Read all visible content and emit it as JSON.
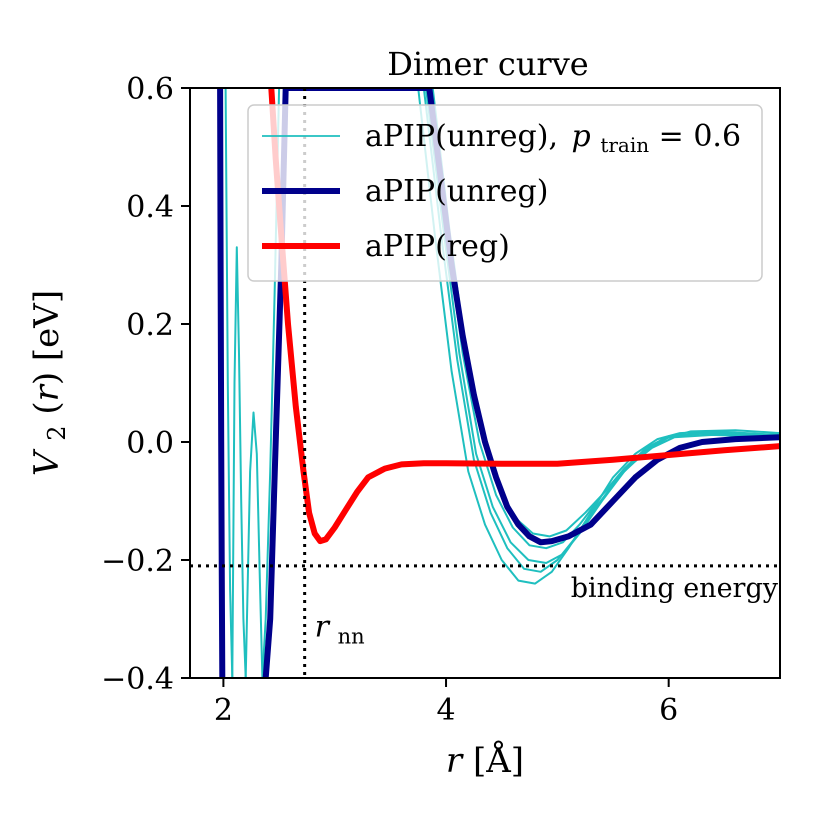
{
  "chart_data": {
    "type": "line",
    "title": "Dimer curve",
    "xlabel": "r [Å]",
    "ylabel": "V2(r) [eV]",
    "xlim": [
      1.7,
      7.0
    ],
    "ylim": [
      -0.4,
      0.6
    ],
    "x_ticks": [
      2,
      4,
      6
    ],
    "y_ticks": [
      -0.4,
      -0.2,
      0.0,
      0.2,
      0.4,
      0.6
    ],
    "x_tick_labels": [
      "2",
      "4",
      "6"
    ],
    "y_tick_labels": [
      "−0.4",
      "−0.2",
      "0.0",
      "0.2",
      "0.4",
      "0.6"
    ],
    "grid": false,
    "legend_position": "top-right",
    "legend": [
      {
        "label": "aPIP(unreg), p_train = 0.6",
        "color": "#1fbfbf"
      },
      {
        "label": "aPIP(unreg)",
        "color": "#00008b"
      },
      {
        "label": "aPIP(reg)",
        "color": "#ff0000"
      }
    ],
    "legend_text": {
      "main": "aPIP(unreg),",
      "p_symbol": "p",
      "p_subscript": "train",
      "p_value": " = 0.6"
    },
    "reference_lines": {
      "r_nn": 2.73,
      "binding_energy": -0.21,
      "r_nn_label": "r",
      "r_nn_subscript": "nn",
      "binding_energy_label": "binding energy"
    },
    "series": [
      {
        "name": "aPIP(unreg)",
        "color": "#00008b",
        "points": [
          [
            2.38,
            -0.4
          ],
          [
            2.42,
            -0.3
          ],
          [
            2.47,
            0.0
          ],
          [
            2.52,
            0.3
          ],
          [
            2.56,
            0.6
          ],
          [
            3.85,
            0.6
          ],
          [
            3.95,
            0.45
          ],
          [
            4.05,
            0.3
          ],
          [
            4.15,
            0.18
          ],
          [
            4.25,
            0.08
          ],
          [
            4.35,
            0.0
          ],
          [
            4.45,
            -0.06
          ],
          [
            4.55,
            -0.11
          ],
          [
            4.65,
            -0.14
          ],
          [
            4.75,
            -0.16
          ],
          [
            4.85,
            -0.17
          ],
          [
            4.95,
            -0.168
          ],
          [
            5.1,
            -0.16
          ],
          [
            5.3,
            -0.14
          ],
          [
            5.5,
            -0.1
          ],
          [
            5.7,
            -0.06
          ],
          [
            5.9,
            -0.03
          ],
          [
            6.1,
            -0.01
          ],
          [
            6.3,
            0.0
          ],
          [
            6.6,
            0.005
          ],
          [
            7.0,
            0.008
          ]
        ]
      },
      {
        "name": "aPIP(unreg) left branch",
        "color": "#00008b",
        "points": [
          [
            1.97,
            0.6
          ],
          [
            1.975,
            0.3
          ],
          [
            1.98,
            0.0
          ],
          [
            1.985,
            -0.2
          ],
          [
            1.99,
            -0.4
          ]
        ]
      },
      {
        "name": "aPIP(reg)",
        "color": "#ff0000",
        "points": [
          [
            2.43,
            0.6
          ],
          [
            2.47,
            0.48
          ],
          [
            2.52,
            0.35
          ],
          [
            2.58,
            0.2
          ],
          [
            2.65,
            0.06
          ],
          [
            2.72,
            -0.05
          ],
          [
            2.77,
            -0.12
          ],
          [
            2.82,
            -0.155
          ],
          [
            2.87,
            -0.168
          ],
          [
            2.92,
            -0.165
          ],
          [
            3.0,
            -0.145
          ],
          [
            3.1,
            -0.115
          ],
          [
            3.2,
            -0.085
          ],
          [
            3.3,
            -0.06
          ],
          [
            3.45,
            -0.045
          ],
          [
            3.6,
            -0.038
          ],
          [
            3.8,
            -0.036
          ],
          [
            4.0,
            -0.036
          ],
          [
            4.5,
            -0.037
          ],
          [
            5.0,
            -0.037
          ],
          [
            5.5,
            -0.03
          ],
          [
            6.0,
            -0.022
          ],
          [
            6.5,
            -0.014
          ],
          [
            7.0,
            -0.007
          ]
        ]
      },
      {
        "name": "aPIP(unreg), p_train = 0.6 (sample 1)",
        "color": "#1fbfbf",
        "points": [
          [
            3.75,
            0.6
          ],
          [
            3.9,
            0.35
          ],
          [
            4.05,
            0.12
          ],
          [
            4.2,
            -0.05
          ],
          [
            4.35,
            -0.14
          ],
          [
            4.5,
            -0.2
          ],
          [
            4.65,
            -0.235
          ],
          [
            4.8,
            -0.24
          ],
          [
            4.95,
            -0.22
          ],
          [
            5.1,
            -0.18
          ],
          [
            5.3,
            -0.12
          ],
          [
            5.5,
            -0.06
          ],
          [
            5.7,
            -0.02
          ],
          [
            5.9,
            0.005
          ],
          [
            6.1,
            0.015
          ],
          [
            6.4,
            0.018
          ],
          [
            7.0,
            0.012
          ]
        ]
      },
      {
        "name": "aPIP(unreg), p_train = 0.6 (sample 2)",
        "color": "#1fbfbf",
        "points": [
          [
            3.8,
            0.6
          ],
          [
            3.95,
            0.36
          ],
          [
            4.1,
            0.14
          ],
          [
            4.25,
            -0.03
          ],
          [
            4.4,
            -0.12
          ],
          [
            4.55,
            -0.18
          ],
          [
            4.7,
            -0.215
          ],
          [
            4.85,
            -0.22
          ],
          [
            5.0,
            -0.2
          ],
          [
            5.15,
            -0.165
          ],
          [
            5.35,
            -0.11
          ],
          [
            5.55,
            -0.06
          ],
          [
            5.75,
            -0.02
          ],
          [
            5.95,
            0.005
          ],
          [
            6.2,
            0.018
          ],
          [
            6.6,
            0.02
          ],
          [
            7.0,
            0.015
          ]
        ]
      },
      {
        "name": "aPIP(unreg), p_train = 0.6 (sample 3)",
        "color": "#1fbfbf",
        "points": [
          [
            3.82,
            0.6
          ],
          [
            3.97,
            0.37
          ],
          [
            4.12,
            0.15
          ],
          [
            4.27,
            -0.02
          ],
          [
            4.42,
            -0.11
          ],
          [
            4.58,
            -0.17
          ],
          [
            4.74,
            -0.2
          ],
          [
            4.9,
            -0.205
          ],
          [
            5.05,
            -0.19
          ],
          [
            5.2,
            -0.155
          ],
          [
            5.4,
            -0.1
          ],
          [
            5.6,
            -0.05
          ],
          [
            5.8,
            -0.015
          ],
          [
            6.0,
            0.008
          ],
          [
            6.3,
            0.016
          ],
          [
            7.0,
            0.012
          ]
        ]
      },
      {
        "name": "aPIP(unreg), p_train = 0.6 (sample 4)",
        "color": "#1fbfbf",
        "points": [
          [
            3.85,
            0.6
          ],
          [
            4.0,
            0.36
          ],
          [
            4.15,
            0.15
          ],
          [
            4.3,
            0.0
          ],
          [
            4.45,
            -0.09
          ],
          [
            4.6,
            -0.145
          ],
          [
            4.75,
            -0.175
          ],
          [
            4.9,
            -0.18
          ],
          [
            5.05,
            -0.17
          ],
          [
            5.2,
            -0.14
          ],
          [
            5.4,
            -0.09
          ],
          [
            5.6,
            -0.045
          ],
          [
            5.8,
            -0.01
          ],
          [
            6.0,
            0.01
          ],
          [
            6.3,
            0.014
          ],
          [
            7.0,
            0.01
          ]
        ]
      },
      {
        "name": "aPIP(unreg), p_train = 0.6 (sample 5)",
        "color": "#1fbfbf",
        "points": [
          [
            3.88,
            0.6
          ],
          [
            4.03,
            0.36
          ],
          [
            4.18,
            0.15
          ],
          [
            4.33,
            0.01
          ],
          [
            4.48,
            -0.08
          ],
          [
            4.63,
            -0.13
          ],
          [
            4.78,
            -0.155
          ],
          [
            4.93,
            -0.16
          ],
          [
            5.08,
            -0.15
          ],
          [
            5.25,
            -0.12
          ],
          [
            5.45,
            -0.08
          ],
          [
            5.65,
            -0.04
          ],
          [
            5.85,
            -0.01
          ],
          [
            6.05,
            0.008
          ],
          [
            6.4,
            0.012
          ],
          [
            7.0,
            0.008
          ]
        ]
      },
      {
        "name": "aPIP(unreg), p_train = 0.6 (left wells a)",
        "color": "#1fbfbf",
        "points": [
          [
            2.02,
            0.6
          ],
          [
            2.04,
            0.1
          ],
          [
            2.06,
            -0.25
          ],
          [
            2.08,
            -0.4
          ]
        ]
      },
      {
        "name": "aPIP(unreg), p_train = 0.6 (left wells b)",
        "color": "#1fbfbf",
        "points": [
          [
            2.08,
            -0.4
          ],
          [
            2.1,
            0.1
          ],
          [
            2.12,
            0.33
          ],
          [
            2.14,
            0.15
          ],
          [
            2.16,
            -0.1
          ],
          [
            2.18,
            -0.3
          ],
          [
            2.2,
            -0.4
          ]
        ]
      },
      {
        "name": "aPIP(unreg), p_train = 0.6 (left wells c)",
        "color": "#1fbfbf",
        "points": [
          [
            2.2,
            -0.4
          ],
          [
            2.24,
            -0.05
          ],
          [
            2.27,
            0.05
          ],
          [
            2.3,
            -0.02
          ],
          [
            2.33,
            -0.25
          ],
          [
            2.35,
            -0.4
          ]
        ]
      },
      {
        "name": "aPIP(unreg), p_train = 0.6 (left wells d)",
        "color": "#1fbfbf",
        "points": [
          [
            2.35,
            -0.4
          ],
          [
            2.38,
            -0.3
          ],
          [
            2.42,
            -0.05
          ],
          [
            2.46,
            0.25
          ],
          [
            2.5,
            0.6
          ]
        ]
      }
    ]
  }
}
